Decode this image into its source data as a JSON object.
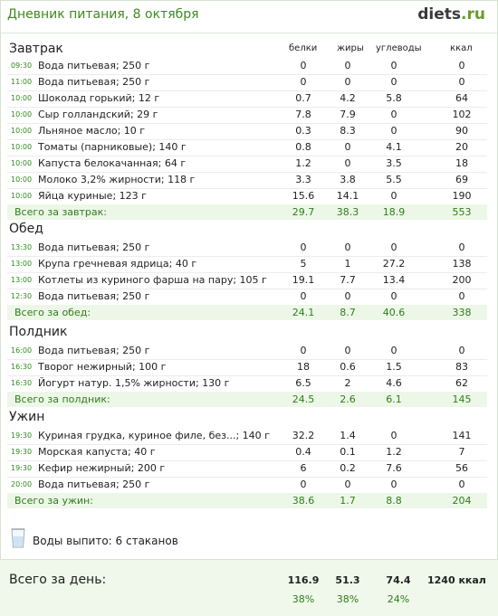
{
  "header": {
    "title": "Дневник питания, 8 октября",
    "logo_main": "diets",
    "logo_tld": ".ru"
  },
  "columns": {
    "protein": "белки",
    "fat": "жиры",
    "carbs": "углеводы",
    "kcal": "ккал"
  },
  "meals": [
    {
      "title": "Завтрак",
      "items": [
        {
          "time": "09:30",
          "name": "Вода питьевая; 250 г",
          "protein": "0",
          "fat": "0",
          "carbs": "0",
          "kcal": "0"
        },
        {
          "time": "11:00",
          "name": "Вода питьевая; 250 г",
          "protein": "0",
          "fat": "0",
          "carbs": "0",
          "kcal": "0"
        },
        {
          "time": "10:00",
          "name": "Шоколад горький; 12 г",
          "protein": "0.7",
          "fat": "4.2",
          "carbs": "5.8",
          "kcal": "64"
        },
        {
          "time": "10:00",
          "name": "Сыр голландский; 29 г",
          "protein": "7.8",
          "fat": "7.9",
          "carbs": "0",
          "kcal": "102"
        },
        {
          "time": "10:00",
          "name": "Льняное масло; 10 г",
          "protein": "0.3",
          "fat": "8.3",
          "carbs": "0",
          "kcal": "90"
        },
        {
          "time": "10:00",
          "name": "Томаты (парниковые); 140 г",
          "protein": "0.8",
          "fat": "0",
          "carbs": "4.1",
          "kcal": "20"
        },
        {
          "time": "10:00",
          "name": "Капуста белокачанная; 64 г",
          "protein": "1.2",
          "fat": "0",
          "carbs": "3.5",
          "kcal": "18"
        },
        {
          "time": "10:00",
          "name": "Молоко 3,2% жирности; 118 г",
          "protein": "3.3",
          "fat": "3.8",
          "carbs": "5.5",
          "kcal": "69"
        },
        {
          "time": "10:00",
          "name": "Яйца куриные; 123 г",
          "protein": "15.6",
          "fat": "14.1",
          "carbs": "0",
          "kcal": "190"
        }
      ],
      "total": {
        "label": "Всего за завтрак:",
        "protein": "29.7",
        "fat": "38.3",
        "carbs": "18.9",
        "kcal": "553"
      }
    },
    {
      "title": "Обед",
      "items": [
        {
          "time": "13:30",
          "name": "Вода питьевая; 250 г",
          "protein": "0",
          "fat": "0",
          "carbs": "0",
          "kcal": "0"
        },
        {
          "time": "13:00",
          "name": "Крупа гречневая ядрица; 40 г",
          "protein": "5",
          "fat": "1",
          "carbs": "27.2",
          "kcal": "138"
        },
        {
          "time": "13:00",
          "name": "Котлеты из куриного фарша на пару; 105 г",
          "protein": "19.1",
          "fat": "7.7",
          "carbs": "13.4",
          "kcal": "200"
        },
        {
          "time": "12:30",
          "name": "Вода питьевая; 250 г",
          "protein": "0",
          "fat": "0",
          "carbs": "0",
          "kcal": "0"
        }
      ],
      "total": {
        "label": "Всего за обед:",
        "protein": "24.1",
        "fat": "8.7",
        "carbs": "40.6",
        "kcal": "338"
      }
    },
    {
      "title": "Полдник",
      "items": [
        {
          "time": "16:00",
          "name": "Вода питьевая; 250 г",
          "protein": "0",
          "fat": "0",
          "carbs": "0",
          "kcal": "0"
        },
        {
          "time": "16:30",
          "name": "Творог нежирный; 100 г",
          "protein": "18",
          "fat": "0.6",
          "carbs": "1.5",
          "kcal": "83"
        },
        {
          "time": "16:30",
          "name": "Йогурт натур. 1,5% жирности; 130 г",
          "protein": "6.5",
          "fat": "2",
          "carbs": "4.6",
          "kcal": "62"
        }
      ],
      "total": {
        "label": "Всего за полдник:",
        "protein": "24.5",
        "fat": "2.6",
        "carbs": "6.1",
        "kcal": "145"
      }
    },
    {
      "title": "Ужин",
      "items": [
        {
          "time": "19:30",
          "name": "Куриная грудка, куриное филе, без...; 140 г",
          "protein": "32.2",
          "fat": "1.4",
          "carbs": "0",
          "kcal": "141"
        },
        {
          "time": "19:30",
          "name": "Морская капуста; 40 г",
          "protein": "0.4",
          "fat": "0.1",
          "carbs": "1.2",
          "kcal": "7"
        },
        {
          "time": "19:30",
          "name": "Кефир нежирный; 200 г",
          "protein": "6",
          "fat": "0.2",
          "carbs": "7.6",
          "kcal": "56"
        },
        {
          "time": "20:00",
          "name": "Вода питьевая; 250 г",
          "protein": "0",
          "fat": "0",
          "carbs": "0",
          "kcal": "0"
        }
      ],
      "total": {
        "label": "Всего за ужин:",
        "protein": "38.6",
        "fat": "1.7",
        "carbs": "8.8",
        "kcal": "204"
      }
    }
  ],
  "water": {
    "label": "Воды выпито: 6 стаканов",
    "icon": "glass-icon"
  },
  "day_total": {
    "label": "Всего за день:",
    "protein": "116.9",
    "fat": "51.3",
    "carbs": "74.4",
    "kcal": "1240 ккал",
    "protein_pct": "38%",
    "fat_pct": "38%",
    "carbs_pct": "24%"
  },
  "colors": {
    "green": "#3e8a1e",
    "total_bg": "#edf7e8"
  }
}
